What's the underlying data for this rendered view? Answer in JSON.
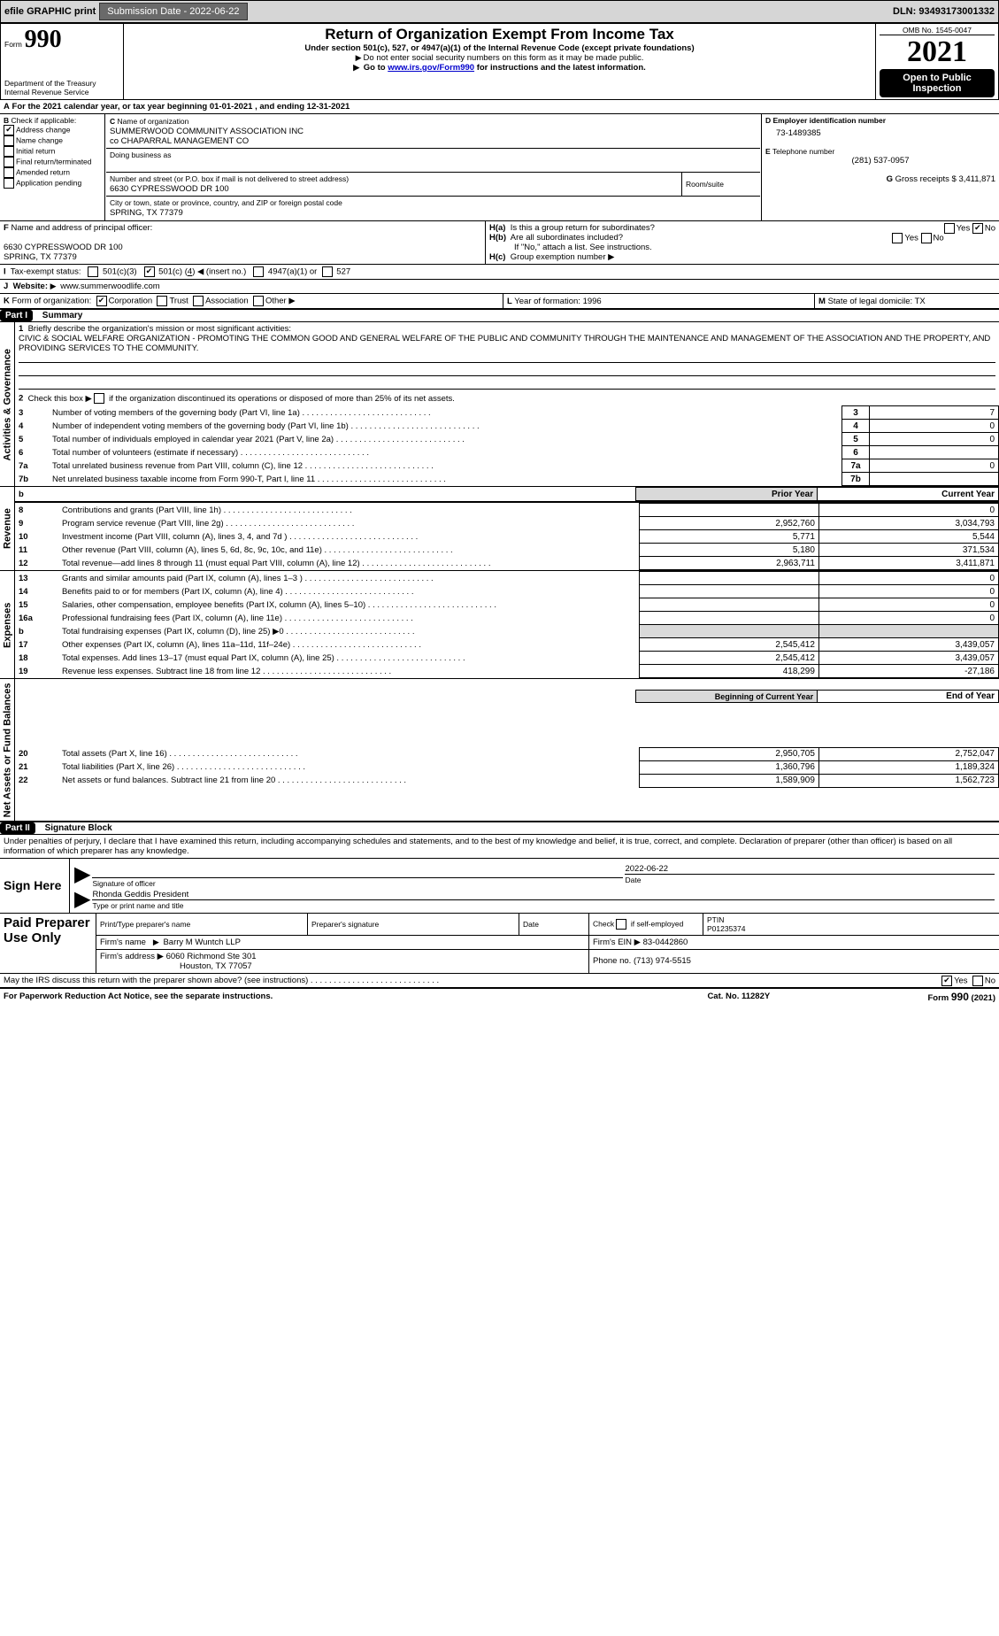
{
  "topbar": {
    "efile": "efile GRAPHIC print",
    "submission_label": "Submission Date - 2022-06-22",
    "dln": "DLN: 93493173001332"
  },
  "header": {
    "form_word": "Form",
    "form_number": "990",
    "title": "Return of Organization Exempt From Income Tax",
    "subtitle": "Under section 501(c), 527, or 4947(a)(1) of the Internal Revenue Code (except private foundations)",
    "note1": "Do not enter social security numbers on this form as it may be made public.",
    "note2_prefix": "Go to ",
    "note2_link": "www.irs.gov/Form990",
    "note2_suffix": " for instructions and the latest information.",
    "dept": "Department of the Treasury",
    "irs": "Internal Revenue Service",
    "omb": "OMB No. 1545-0047",
    "year": "2021",
    "open": "Open to Public Inspection"
  },
  "A": {
    "text": "For the 2021 calendar year, or tax year beginning 01-01-2021    , and ending 12-31-2021"
  },
  "B": {
    "label": "Check if applicable:",
    "opts": [
      "Address change",
      "Name change",
      "Initial return",
      "Final return/terminated",
      "Amended return",
      "Application pending"
    ]
  },
  "C": {
    "label": "Name of organization",
    "name1": "SUMMERWOOD COMMUNITY ASSOCIATION INC",
    "name2": "co CHAPARRAL MANAGEMENT CO",
    "dba_label": "Doing business as",
    "street_label": "Number and street (or P.O. box if mail is not delivered to street address)",
    "room_label": "Room/suite",
    "street": "6630 CYPRESSWOOD DR 100",
    "city_label": "City or town, state or province, country, and ZIP or foreign postal code",
    "city": "SPRING, TX  77379"
  },
  "D": {
    "label": "Employer identification number",
    "value": "73-1489385"
  },
  "E": {
    "label": "Telephone number",
    "value": "(281) 537-0957"
  },
  "G": {
    "label": "Gross receipts $",
    "value": "3,411,871"
  },
  "F": {
    "label": "Name and address of principal officer:",
    "line1": "6630 CYPRESSWOOD DR 100",
    "line2": "SPRING, TX  77379"
  },
  "H": {
    "a": "Is this a group return for subordinates?",
    "b": "Are all subordinates included?",
    "bnote": "If \"No,\" attach a list. See instructions.",
    "c": "Group exemption number"
  },
  "I": {
    "label": "Tax-exempt status:",
    "opt1": "501(c)(3)",
    "opt2_pre": "501(c) (",
    "opt2_num": "4",
    "opt2_post": ") ◀ (insert no.)",
    "opt3": "4947(a)(1) or",
    "opt4": "527"
  },
  "J": {
    "label": "Website:",
    "value": "www.summerwoodlife.com"
  },
  "K": {
    "label": "Form of organization:",
    "opts": [
      "Corporation",
      "Trust",
      "Association",
      "Other"
    ]
  },
  "L": {
    "label": "Year of formation:",
    "value": "1996"
  },
  "M": {
    "label": "State of legal domicile:",
    "value": "TX"
  },
  "part1": {
    "title": "Part I",
    "heading": "Summary",
    "q1": "Briefly describe the organization's mission or most significant activities:",
    "mission": "CIVIC & SOCIAL WELFARE ORGANIZATION - PROMOTING THE COMMON GOOD AND GENERAL WELFARE OF THE PUBLIC AND COMMUNITY THROUGH THE MAINTENANCE AND MANAGEMENT OF THE ASSOCIATION AND THE PROPERTY, AND PROVIDING SERVICES TO THE COMMUNITY.",
    "q2": "Check this box ▶     if the organization discontinued its operations or disposed of more than 25% of its net assets.",
    "rows_gov": [
      {
        "n": "3",
        "t": "Number of voting members of the governing body (Part VI, line 1a)",
        "v": "7"
      },
      {
        "n": "4",
        "t": "Number of independent voting members of the governing body (Part VI, line 1b)",
        "v": "0"
      },
      {
        "n": "5",
        "t": "Total number of individuals employed in calendar year 2021 (Part V, line 2a)",
        "v": "0"
      },
      {
        "n": "6",
        "t": "Total number of volunteers (estimate if necessary)",
        "v": ""
      },
      {
        "n": "7a",
        "t": "Total unrelated business revenue from Part VIII, column (C), line 12",
        "v": "0"
      },
      {
        "n": "7b",
        "t": "Net unrelated business taxable income from Form 990-T, Part I, line 11",
        "v": ""
      }
    ],
    "col_prior": "Prior Year",
    "col_current": "Current Year",
    "rows_rev": [
      {
        "n": "8",
        "t": "Contributions and grants (Part VIII, line 1h)",
        "p": "",
        "c": "0"
      },
      {
        "n": "9",
        "t": "Program service revenue (Part VIII, line 2g)",
        "p": "2,952,760",
        "c": "3,034,793"
      },
      {
        "n": "10",
        "t": "Investment income (Part VIII, column (A), lines 3, 4, and 7d )",
        "p": "5,771",
        "c": "5,544"
      },
      {
        "n": "11",
        "t": "Other revenue (Part VIII, column (A), lines 5, 6d, 8c, 9c, 10c, and 11e)",
        "p": "5,180",
        "c": "371,534"
      },
      {
        "n": "12",
        "t": "Total revenue—add lines 8 through 11 (must equal Part VIII, column (A), line 12)",
        "p": "2,963,711",
        "c": "3,411,871"
      }
    ],
    "rows_exp": [
      {
        "n": "13",
        "t": "Grants and similar amounts paid (Part IX, column (A), lines 1–3 )",
        "p": "",
        "c": "0"
      },
      {
        "n": "14",
        "t": "Benefits paid to or for members (Part IX, column (A), line 4)",
        "p": "",
        "c": "0"
      },
      {
        "n": "15",
        "t": "Salaries, other compensation, employee benefits (Part IX, column (A), lines 5–10)",
        "p": "",
        "c": "0"
      },
      {
        "n": "16a",
        "t": "Professional fundraising fees (Part IX, column (A), line 11e)",
        "p": "",
        "c": "0"
      },
      {
        "n": "b",
        "t": "Total fundraising expenses (Part IX, column (D), line 25) ▶0",
        "p": "grey",
        "c": "grey"
      },
      {
        "n": "17",
        "t": "Other expenses (Part IX, column (A), lines 11a–11d, 11f–24e)",
        "p": "2,545,412",
        "c": "3,439,057"
      },
      {
        "n": "18",
        "t": "Total expenses. Add lines 13–17 (must equal Part IX, column (A), line 25)",
        "p": "2,545,412",
        "c": "3,439,057"
      },
      {
        "n": "19",
        "t": "Revenue less expenses. Subtract line 18 from line 12",
        "p": "418,299",
        "c": "-27,186"
      }
    ],
    "col_boy": "Beginning of Current Year",
    "col_eoy": "End of Year",
    "rows_net": [
      {
        "n": "20",
        "t": "Total assets (Part X, line 16)",
        "p": "2,950,705",
        "c": "2,752,047"
      },
      {
        "n": "21",
        "t": "Total liabilities (Part X, line 26)",
        "p": "1,360,796",
        "c": "1,189,324"
      },
      {
        "n": "22",
        "t": "Net assets or fund balances. Subtract line 21 from line 20",
        "p": "1,589,909",
        "c": "1,562,723"
      }
    ],
    "vert_gov": "Activities & Governance",
    "vert_rev": "Revenue",
    "vert_exp": "Expenses",
    "vert_net": "Net Assets or Fund Balances"
  },
  "part2": {
    "title": "Part II",
    "heading": "Signature Block",
    "penalty": "Under penalties of perjury, I declare that I have examined this return, including accompanying schedules and statements, and to the best of my knowledge and belief, it is true, correct, and complete. Declaration of preparer (other than officer) is based on all information of which preparer has any knowledge.",
    "sign_here": "Sign Here",
    "sig_officer": "Signature of officer",
    "sig_date": "Date",
    "date_val": "2022-06-22",
    "officer_name": "Rhonda Geddis  President",
    "type_name": "Type or print name and title",
    "paid": "Paid Preparer Use Only",
    "h1": "Print/Type preparer's name",
    "h2": "Preparer's signature",
    "h3": "Date",
    "h4_pre": "Check         if self-employed",
    "h5": "PTIN",
    "ptin": "P01235374",
    "firm_name_l": "Firm's name",
    "firm_name": "Barry M Wuntch LLP",
    "firm_ein_l": "Firm's EIN ▶",
    "firm_ein": "83-0442860",
    "firm_addr_l": "Firm's address ▶",
    "firm_addr1": "6060 Richmond Ste 301",
    "firm_addr2": "Houston, TX  77057",
    "phone_l": "Phone no.",
    "phone": "(713) 974-5515",
    "discuss": "May the IRS discuss this return with the preparer shown above? (see instructions)",
    "paperwork": "For Paperwork Reduction Act Notice, see the separate instructions.",
    "cat": "Cat. No. 11282Y",
    "formfoot": "Form 990 (2021)",
    "yes": "Yes",
    "no": "No"
  }
}
